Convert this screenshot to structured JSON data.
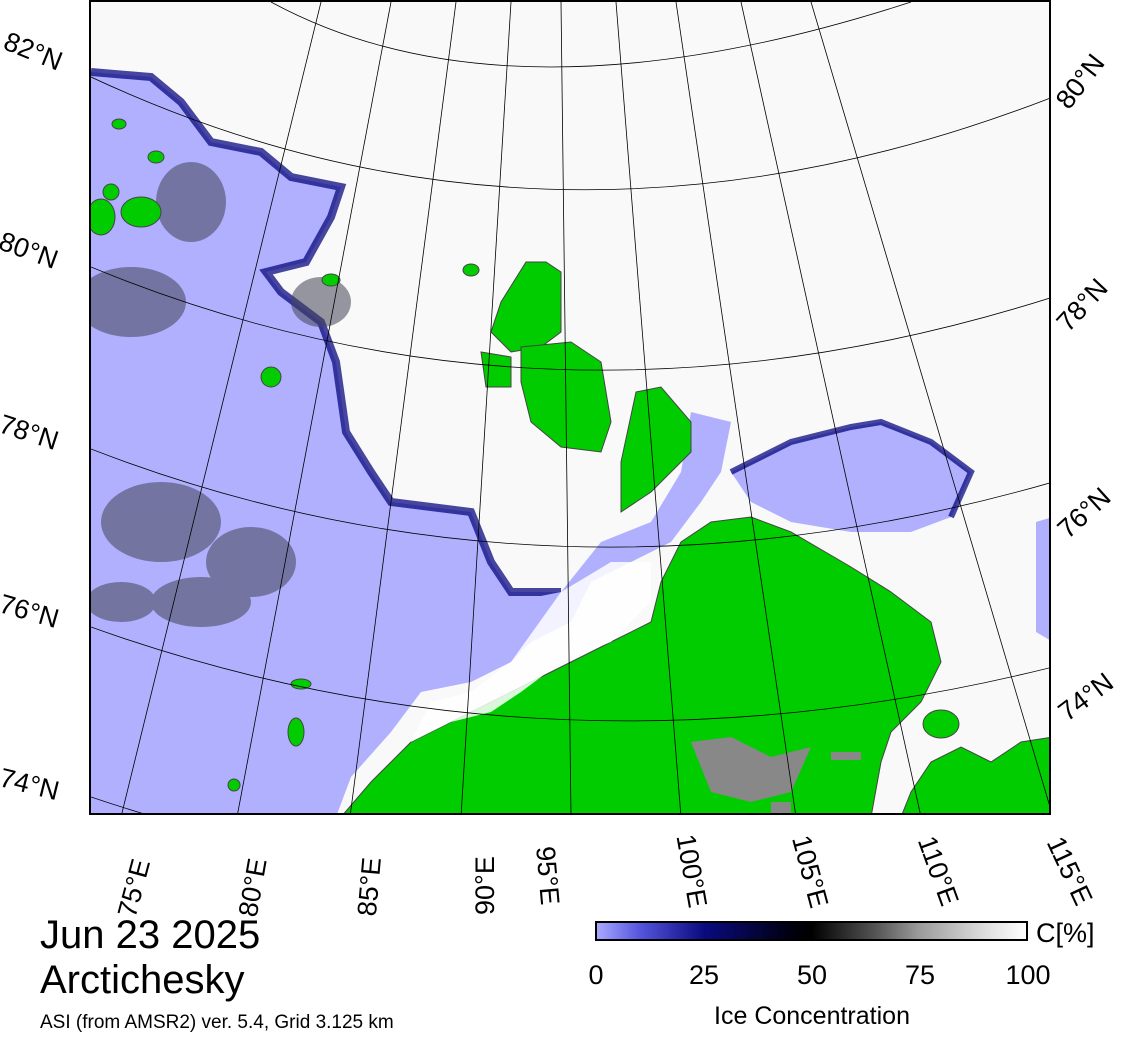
{
  "header": {
    "date": "Jun 23 2025",
    "region": "Arctichesky",
    "source": "ASI (from AMSR2) ver. 5.4,  Grid 3.125 km"
  },
  "lat_labels_left": [
    "82°N",
    "80°N",
    "78°N",
    "76°N",
    "74°N"
  ],
  "lat_labels_right": [
    "80°N",
    "78°N",
    "76°N",
    "74°N"
  ],
  "lon_labels": [
    "75°E",
    "80°E",
    "85°E",
    "90°E",
    "95°E",
    "100°E",
    "105°E",
    "110°E",
    "115°E"
  ],
  "colorbar": {
    "ticks": [
      "0",
      "25",
      "50",
      "75",
      "100"
    ],
    "unit": "C[%]",
    "label": "Ice Concentration"
  },
  "colors": {
    "open_water": "#b0b0ff",
    "land": "#00cc00",
    "high_ice": "#ffffff",
    "ice_edge": "#0a0a80",
    "land_ice": "#888888"
  }
}
